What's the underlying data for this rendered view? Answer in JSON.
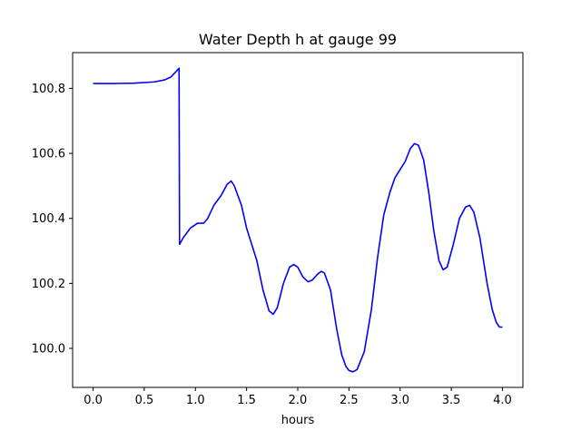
{
  "chart_data": {
    "type": "line",
    "title": "Water Depth h at gauge 99",
    "xlabel": "hours",
    "ylabel": "",
    "xlim": [
      -0.2,
      4.2
    ],
    "ylim": [
      99.88,
      100.91
    ],
    "grid": false,
    "x_ticks": [
      0.0,
      0.5,
      1.0,
      1.5,
      2.0,
      2.5,
      3.0,
      3.5,
      4.0
    ],
    "x_tick_labels": [
      "0.0",
      "0.5",
      "1.0",
      "1.5",
      "2.0",
      "2.5",
      "3.0",
      "3.5",
      "4.0"
    ],
    "y_ticks": [
      100.0,
      100.2,
      100.4,
      100.6,
      100.8
    ],
    "y_tick_labels": [
      "100.0",
      "100.2",
      "100.4",
      "100.6",
      "100.8"
    ],
    "series": [
      {
        "color": "#0000ff",
        "points": [
          [
            0.0,
            100.815
          ],
          [
            0.2,
            100.815
          ],
          [
            0.4,
            100.816
          ],
          [
            0.6,
            100.82
          ],
          [
            0.7,
            100.826
          ],
          [
            0.76,
            100.835
          ],
          [
            0.8,
            100.848
          ],
          [
            0.84,
            100.862
          ],
          [
            0.845,
            100.32
          ],
          [
            0.88,
            100.34
          ],
          [
            0.95,
            100.37
          ],
          [
            1.02,
            100.385
          ],
          [
            1.08,
            100.385
          ],
          [
            1.12,
            100.4
          ],
          [
            1.18,
            100.44
          ],
          [
            1.25,
            100.47
          ],
          [
            1.31,
            100.505
          ],
          [
            1.35,
            100.515
          ],
          [
            1.38,
            100.5
          ],
          [
            1.45,
            100.44
          ],
          [
            1.5,
            100.37
          ],
          [
            1.6,
            100.27
          ],
          [
            1.66,
            100.18
          ],
          [
            1.72,
            100.115
          ],
          [
            1.76,
            100.105
          ],
          [
            1.8,
            100.125
          ],
          [
            1.86,
            100.2
          ],
          [
            1.92,
            100.25
          ],
          [
            1.96,
            100.258
          ],
          [
            2.0,
            100.25
          ],
          [
            2.05,
            100.22
          ],
          [
            2.1,
            100.205
          ],
          [
            2.14,
            100.21
          ],
          [
            2.2,
            100.23
          ],
          [
            2.23,
            100.237
          ],
          [
            2.26,
            100.232
          ],
          [
            2.32,
            100.18
          ],
          [
            2.38,
            100.06
          ],
          [
            2.43,
            99.98
          ],
          [
            2.47,
            99.945
          ],
          [
            2.5,
            99.932
          ],
          [
            2.54,
            99.928
          ],
          [
            2.58,
            99.935
          ],
          [
            2.65,
            99.99
          ],
          [
            2.72,
            100.12
          ],
          [
            2.78,
            100.28
          ],
          [
            2.84,
            100.41
          ],
          [
            2.9,
            100.48
          ],
          [
            2.95,
            100.525
          ],
          [
            3.0,
            100.55
          ],
          [
            3.05,
            100.575
          ],
          [
            3.1,
            100.615
          ],
          [
            3.14,
            100.63
          ],
          [
            3.18,
            100.625
          ],
          [
            3.23,
            100.58
          ],
          [
            3.28,
            100.48
          ],
          [
            3.33,
            100.36
          ],
          [
            3.38,
            100.27
          ],
          [
            3.42,
            100.242
          ],
          [
            3.46,
            100.25
          ],
          [
            3.52,
            100.32
          ],
          [
            3.58,
            100.4
          ],
          [
            3.64,
            100.435
          ],
          [
            3.68,
            100.44
          ],
          [
            3.72,
            100.42
          ],
          [
            3.78,
            100.34
          ],
          [
            3.85,
            100.2
          ],
          [
            3.9,
            100.12
          ],
          [
            3.94,
            100.08
          ],
          [
            3.97,
            100.066
          ],
          [
            4.0,
            100.065
          ]
        ]
      }
    ]
  }
}
